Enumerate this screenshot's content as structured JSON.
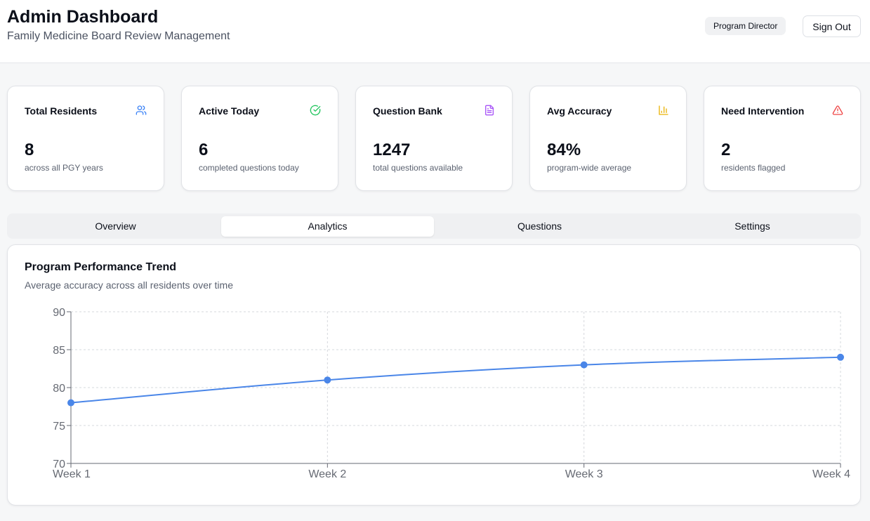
{
  "header": {
    "title": "Admin Dashboard",
    "subtitle": "Family Medicine Board Review Management",
    "role_badge": "Program Director",
    "sign_out": "Sign Out"
  },
  "stats": [
    {
      "label": "Total Residents",
      "value": "8",
      "caption": "across all PGY years",
      "icon": "users-icon",
      "color": "#3b82f6"
    },
    {
      "label": "Active Today",
      "value": "6",
      "caption": "completed questions today",
      "icon": "check-circle-icon",
      "color": "#22c55e"
    },
    {
      "label": "Question Bank",
      "value": "1247",
      "caption": "total questions available",
      "icon": "file-text-icon",
      "color": "#a855f7"
    },
    {
      "label": "Avg Accuracy",
      "value": "84%",
      "caption": "program-wide average",
      "icon": "bar-chart-icon",
      "color": "#eab308"
    },
    {
      "label": "Need Intervention",
      "value": "2",
      "caption": "residents flagged",
      "icon": "alert-triangle-icon",
      "color": "#ef4444"
    }
  ],
  "tabs": [
    {
      "label": "Overview",
      "active": false
    },
    {
      "label": "Analytics",
      "active": true
    },
    {
      "label": "Questions",
      "active": false
    },
    {
      "label": "Settings",
      "active": false
    }
  ],
  "chart": {
    "title": "Program Performance Trend",
    "subtitle": "Average accuracy across all residents over time"
  },
  "chart_data": {
    "type": "line",
    "categories": [
      "Week 1",
      "Week 2",
      "Week 3",
      "Week 4"
    ],
    "series": [
      {
        "values": [
          78,
          81,
          83,
          84
        ],
        "color": "#4a86e8"
      }
    ],
    "ylim": [
      70,
      90
    ],
    "yticks": [
      70,
      75,
      80,
      85,
      90
    ],
    "grid": true
  }
}
